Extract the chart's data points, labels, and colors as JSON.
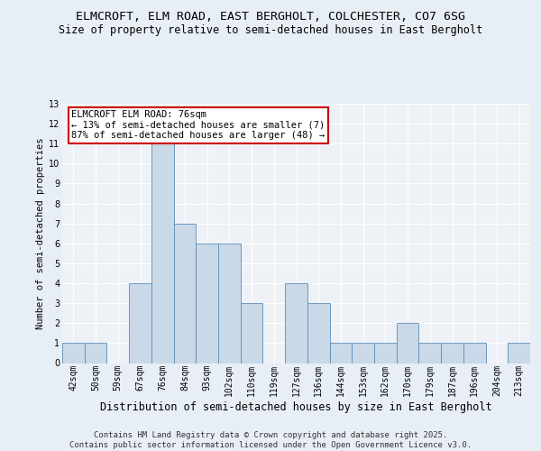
{
  "title1": "ELMCROFT, ELM ROAD, EAST BERGHOLT, COLCHESTER, CO7 6SG",
  "title2": "Size of property relative to semi-detached houses in East Bergholt",
  "xlabel": "Distribution of semi-detached houses by size in East Bergholt",
  "ylabel": "Number of semi-detached properties",
  "categories": [
    "42sqm",
    "50sqm",
    "59sqm",
    "67sqm",
    "76sqm",
    "84sqm",
    "93sqm",
    "102sqm",
    "110sqm",
    "119sqm",
    "127sqm",
    "136sqm",
    "144sqm",
    "153sqm",
    "162sqm",
    "170sqm",
    "179sqm",
    "187sqm",
    "196sqm",
    "204sqm",
    "213sqm"
  ],
  "values": [
    1,
    1,
    0,
    4,
    11,
    7,
    6,
    6,
    3,
    0,
    4,
    3,
    1,
    1,
    1,
    2,
    1,
    1,
    1,
    0,
    1
  ],
  "highlight_index": 4,
  "bar_color": "#c9d9e8",
  "bar_edge_color": "#5b8db8",
  "annotation_text": "ELMCROFT ELM ROAD: 76sqm\n← 13% of semi-detached houses are smaller (7)\n87% of semi-detached houses are larger (48) →",
  "annotation_box_color": "#ffffff",
  "annotation_box_edge_color": "#cc0000",
  "ylim": [
    0,
    13
  ],
  "yticks": [
    0,
    1,
    2,
    3,
    4,
    5,
    6,
    7,
    8,
    9,
    10,
    11,
    12,
    13
  ],
  "footer": "Contains HM Land Registry data © Crown copyright and database right 2025.\nContains public sector information licensed under the Open Government Licence v3.0.",
  "background_color": "#e8eef5",
  "plot_background_color": "#eef2f7",
  "grid_color": "#ffffff",
  "title1_fontsize": 9.5,
  "title2_fontsize": 8.5,
  "xlabel_fontsize": 8.5,
  "ylabel_fontsize": 7.5,
  "tick_fontsize": 7,
  "annotation_fontsize": 7.5,
  "footer_fontsize": 6.5
}
